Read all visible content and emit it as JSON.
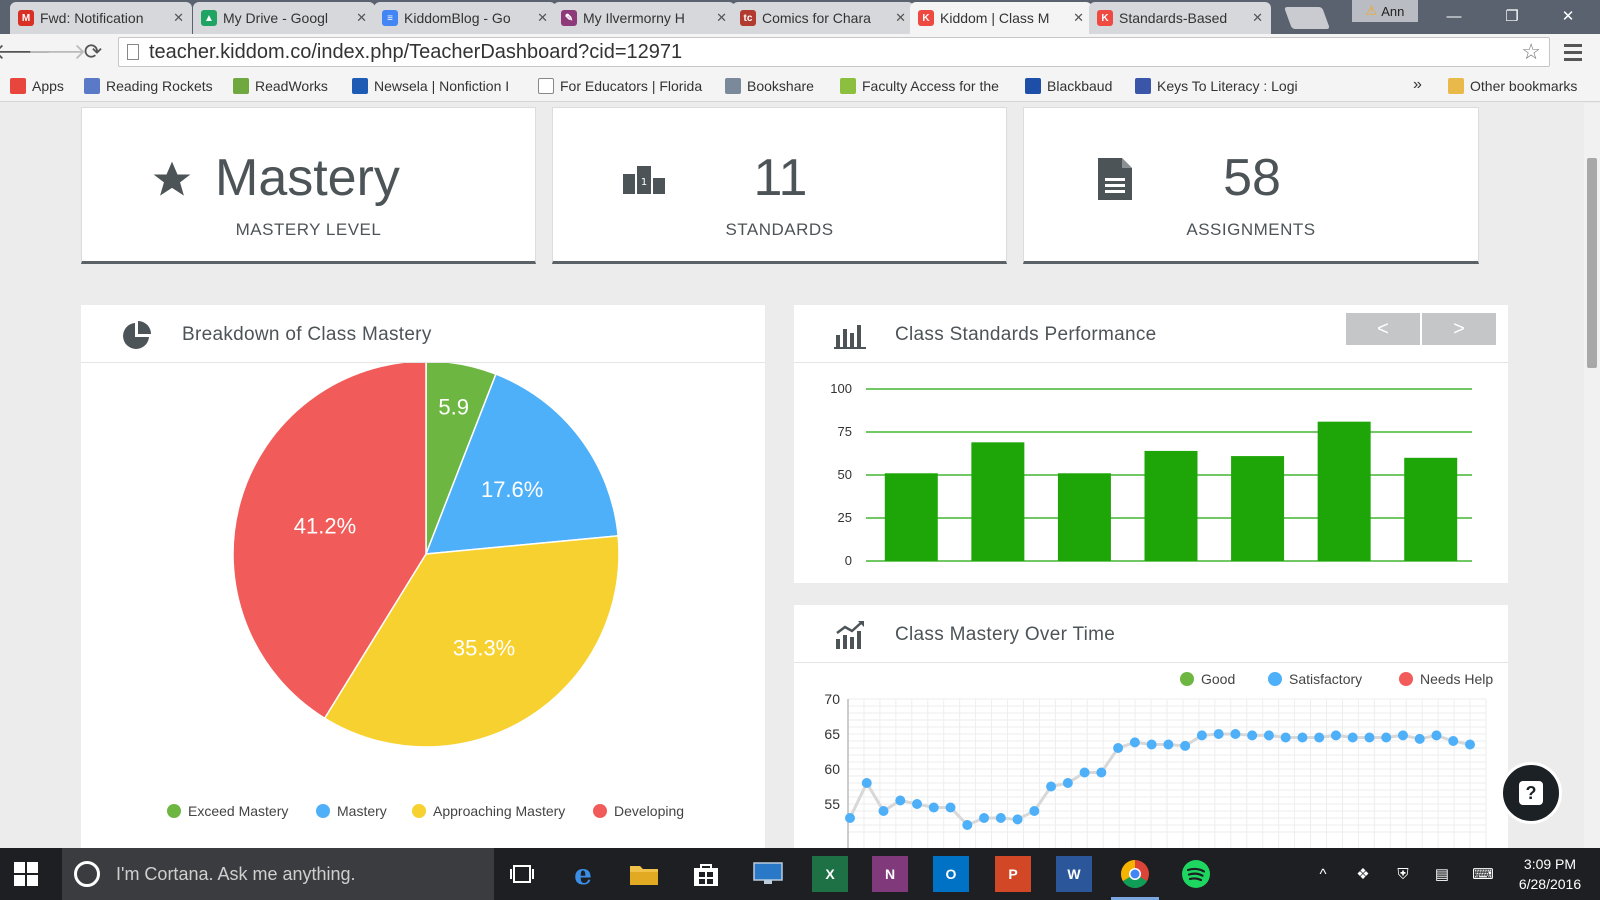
{
  "browser": {
    "tabs": [
      {
        "label": "Fwd: Notification",
        "favicon": "gmail-icon",
        "color": "#d93025",
        "glyph": "M"
      },
      {
        "label": "My Drive - Googl",
        "favicon": "drive-icon",
        "color": "#1fa463",
        "glyph": "▲"
      },
      {
        "label": "KiddomBlog - Go",
        "favicon": "docs-icon",
        "color": "#4285f4",
        "glyph": "≡"
      },
      {
        "label": "My Ilvermorny H",
        "favicon": "quill-icon",
        "color": "#8e3a7a",
        "glyph": "✎"
      },
      {
        "label": "Comics for Chara",
        "favicon": "comics-icon",
        "color": "#b23a2e",
        "glyph": "tc"
      },
      {
        "label": "Kiddom | Class M",
        "favicon": "kiddom-icon",
        "color": "#ef4a42",
        "glyph": "K"
      },
      {
        "label": "Standards-Based",
        "favicon": "kiddom-icon",
        "color": "#ef4a42",
        "glyph": "K"
      }
    ],
    "user": "Ann",
    "url": "teacher.kiddom.co/index.php/TeacherDashboard?cid=12971",
    "bookmarks": [
      {
        "label": "Apps"
      },
      {
        "label": "Reading Rockets"
      },
      {
        "label": "ReadWorks"
      },
      {
        "label": "Newsela | Nonfiction I"
      },
      {
        "label": "For Educators | Florida"
      },
      {
        "label": "Bookshare"
      },
      {
        "label": "Faculty Access for the"
      },
      {
        "label": "Blackbaud"
      },
      {
        "label": "Keys To Literacy : Logi"
      }
    ],
    "bookmarks_more": "»",
    "other_bookmarks": "Other bookmarks"
  },
  "stats": {
    "mastery": {
      "value": "Mastery",
      "label": "MASTERY LEVEL"
    },
    "standards": {
      "value": "11",
      "label": "STANDARDS"
    },
    "assignments": {
      "value": "58",
      "label": "ASSIGNMENTS"
    }
  },
  "breakdown": {
    "title": "Breakdown of Class Mastery",
    "chart_data": {
      "type": "pie",
      "slices": [
        {
          "name": "Exceed Mastery",
          "value": 5.9,
          "label": "5.9",
          "color": "#6cb641"
        },
        {
          "name": "Mastery",
          "value": 17.6,
          "label": "17.6%",
          "color": "#4eb0f9"
        },
        {
          "name": "Approaching Mastery",
          "value": 35.3,
          "label": "35.3%",
          "color": "#f7d12f"
        },
        {
          "name": "Developing",
          "value": 41.2,
          "label": "41.2%",
          "color": "#f15c5a"
        }
      ],
      "legend_position": "bottom"
    }
  },
  "standards_performance": {
    "title": "Class Standards Performance",
    "prev_label": "<",
    "next_label": ">",
    "chart_data": {
      "type": "bar",
      "values": [
        51,
        69,
        51,
        64,
        61,
        81,
        60
      ],
      "ylim": [
        0,
        100
      ],
      "yticks": [
        "0",
        "25",
        "50",
        "75",
        "100"
      ],
      "color": "#1ea608",
      "grid": true
    }
  },
  "mastery_over_time": {
    "title": "Class Mastery Over Time",
    "legend": [
      {
        "label": "Good",
        "color": "#6cb641"
      },
      {
        "label": "Satisfactory",
        "color": "#4eb0f9"
      },
      {
        "label": "Needs Help",
        "color": "#f15c5a"
      }
    ],
    "chart_data": {
      "type": "line",
      "series_color": "#4eb0f9",
      "yticks": [
        "55",
        "60",
        "65",
        "70"
      ],
      "ylim": [
        50,
        70
      ],
      "values": [
        53,
        58,
        54,
        55.5,
        55,
        54.5,
        54.5,
        52,
        53,
        53,
        52.8,
        54,
        57.5,
        58,
        59.5,
        59.5,
        63,
        63.8,
        63.5,
        63.5,
        63.3,
        64.8,
        65,
        65,
        64.8,
        64.8,
        64.5,
        64.5,
        64.5,
        64.8,
        64.5,
        64.5,
        64.5,
        64.8,
        64.3,
        64.8,
        64,
        63.5
      ],
      "grid": true
    }
  },
  "taskbar": {
    "cortana_placeholder": "I'm Cortana. Ask me anything.",
    "time": "3:09 PM",
    "date": "6/28/2016"
  }
}
